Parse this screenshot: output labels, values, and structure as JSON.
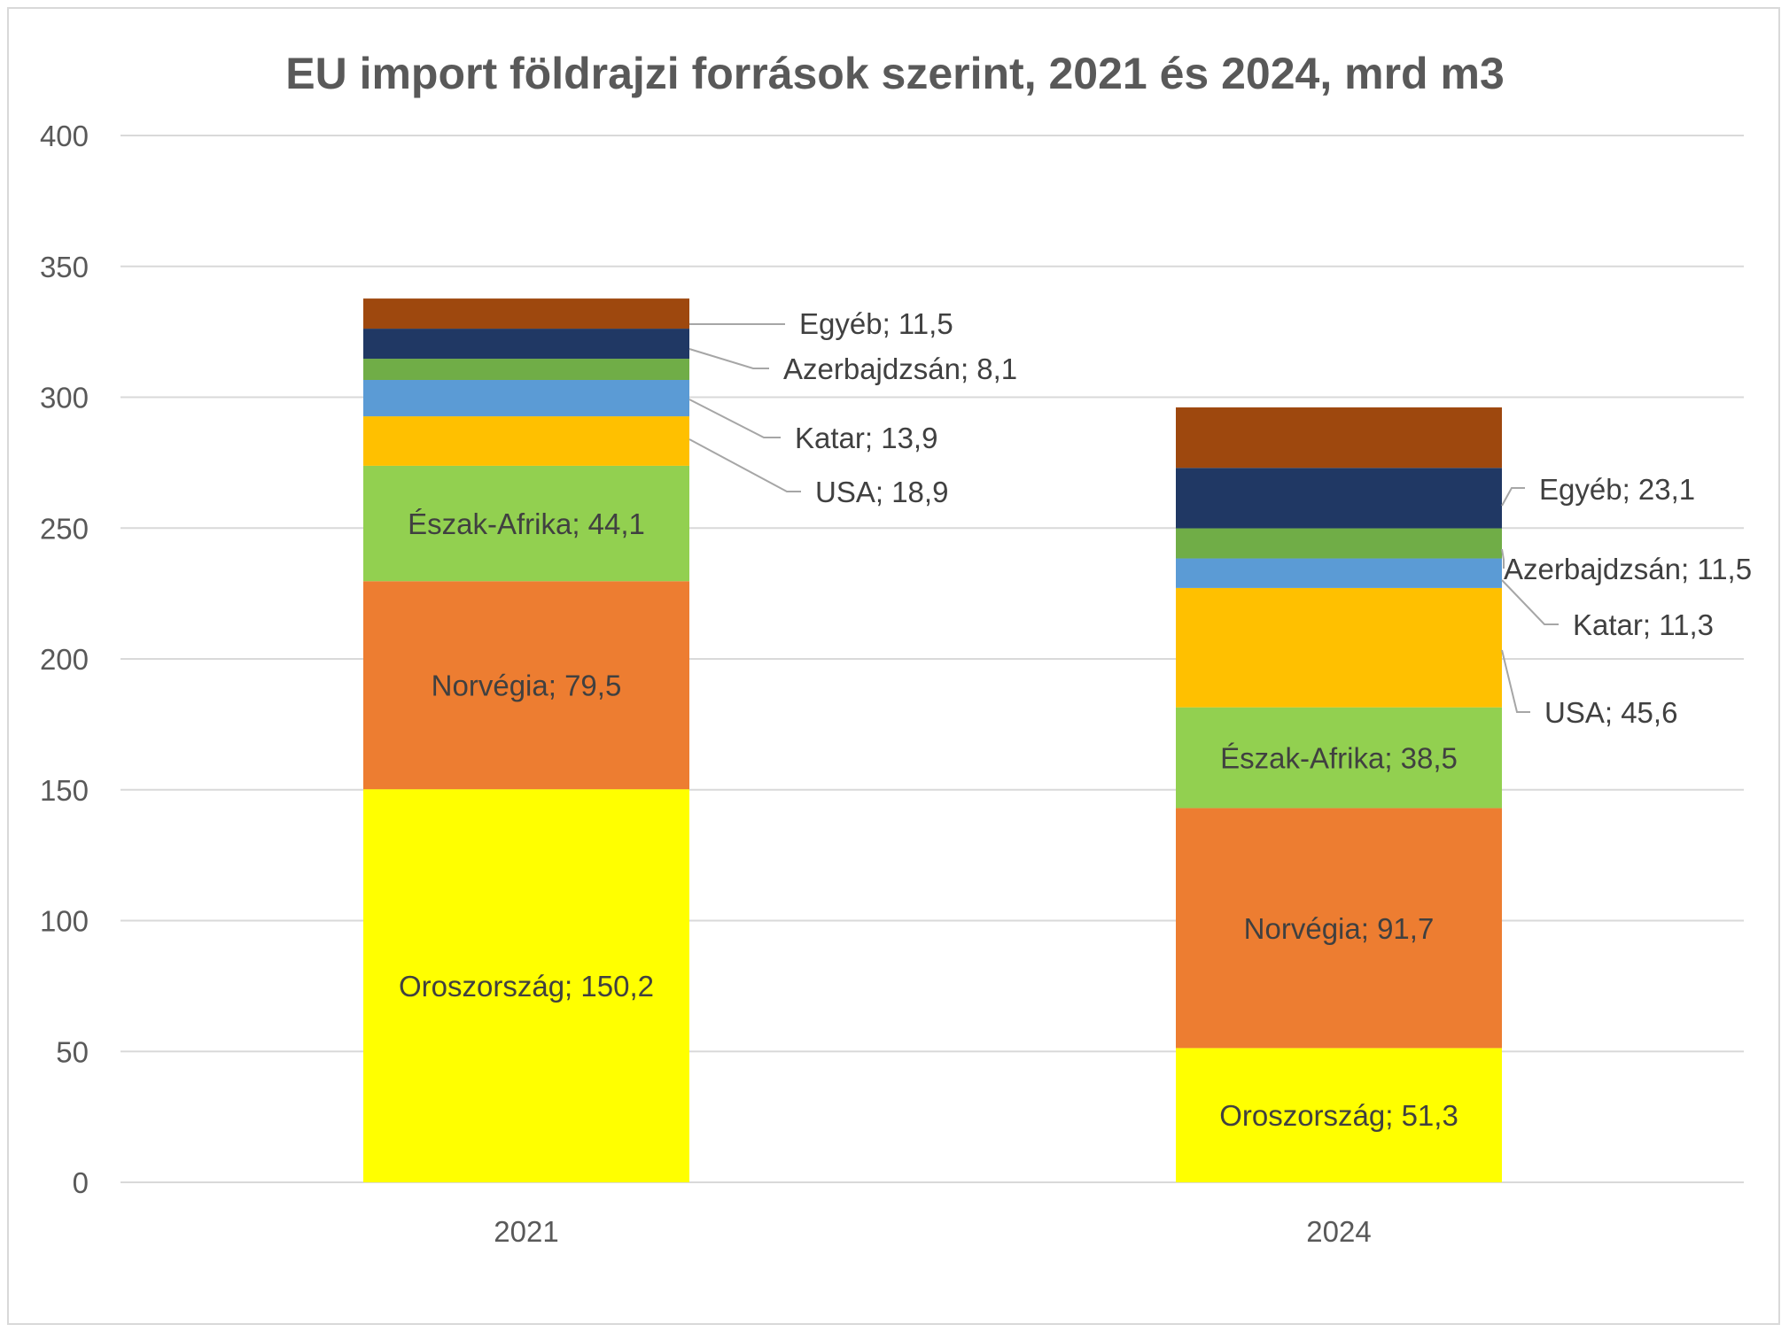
{
  "chart_data": {
    "type": "bar",
    "stacked": true,
    "title": "EU import földrajzi források szerint, 2021 és 2024, mrd m3",
    "xlabel": "",
    "ylabel": "",
    "ylim": [
      0,
      400
    ],
    "yticks": [
      "0",
      "50",
      "100",
      "150",
      "200",
      "250",
      "300",
      "350",
      "400"
    ],
    "grid": true,
    "legend": "none",
    "categories": [
      "2021",
      "2024"
    ],
    "series": [
      {
        "name": "Oroszország",
        "color": "#ffff00",
        "values": [
          150.2,
          51.3
        ],
        "labels": [
          "Oroszország; 150,2",
          "Oroszország; 51,3"
        ]
      },
      {
        "name": "Norvégia",
        "color": "#ed7d31",
        "values": [
          79.5,
          91.7
        ],
        "labels": [
          "Norvégia; 79,5",
          "Norvégia; 91,7"
        ]
      },
      {
        "name": "Észak-Afrika",
        "color": "#92d050",
        "values": [
          44.1,
          38.5
        ],
        "labels": [
          "Észak-Afrika; 44,1",
          "Észak-Afrika; 38,5"
        ]
      },
      {
        "name": "USA",
        "color": "#ffc000",
        "values": [
          18.9,
          45.6
        ],
        "labels": [
          "USA; 18,9",
          "USA; 45,6"
        ]
      },
      {
        "name": "Katar",
        "color": "#5b9bd5",
        "values": [
          13.9,
          11.3
        ],
        "labels": [
          "Katar; 13,9",
          "Katar; 11,3"
        ]
      },
      {
        "name": "Azerbajdzsán",
        "color": "#70ad47",
        "values": [
          8.1,
          11.5
        ],
        "labels": [
          "Azerbajdzsán; 8,1",
          "Azerbajdzsán; 11,5"
        ]
      },
      {
        "name": "Egyéb",
        "color": "#203864",
        "values": [
          11.5,
          23.1
        ],
        "labels": [
          "Egyéb; 11,5",
          "Egyéb; 23,1"
        ]
      },
      {
        "name": "",
        "color": "#9e480e",
        "values": [
          11.5,
          23.1
        ],
        "labels": [
          "",
          ""
        ]
      }
    ]
  },
  "colors": {
    "background": "#ffffff",
    "grid": "#d9d9d9",
    "title_text": "#595959",
    "label_text": "#404040",
    "leader_line": "#a6a6a6"
  }
}
